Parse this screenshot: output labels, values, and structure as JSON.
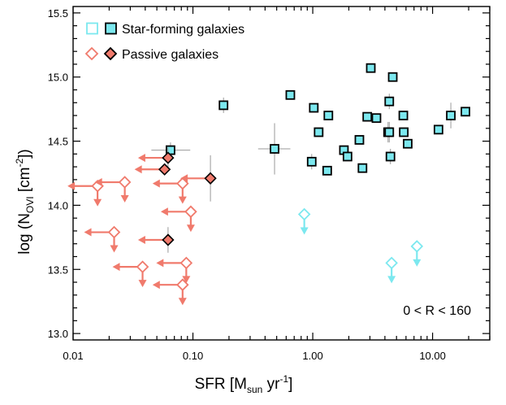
{
  "chart_data": {
    "type": "scatter",
    "xscale": "log",
    "xlim": [
      0.01,
      30
    ],
    "ylim": [
      12.95,
      15.55
    ],
    "xticks": [
      {
        "value": 0.01,
        "label": "0.01"
      },
      {
        "value": 0.1,
        "label": "0.10"
      },
      {
        "value": 1,
        "label": "1.00"
      },
      {
        "value": 10,
        "label": "10.00"
      }
    ],
    "yticks": [
      {
        "value": 13.0,
        "label": "13.0"
      },
      {
        "value": 13.5,
        "label": "13.5"
      },
      {
        "value": 14.0,
        "label": "14.0"
      },
      {
        "value": 14.5,
        "label": "14.5"
      },
      {
        "value": 15.0,
        "label": "15.0"
      },
      {
        "value": 15.5,
        "label": "15.5"
      }
    ],
    "xlabel": {
      "main": "SFR [M",
      "sub": "sun",
      "tail1": " yr",
      "sup": "-1",
      "tail2": "]"
    },
    "ylabel": {
      "main": "log (N",
      "sub": "OVI",
      "tail1": " [cm",
      "sup": "-2",
      "tail2": "])"
    },
    "legend": {
      "placement": "top-left",
      "entries": [
        {
          "label": "Star-forming galaxies",
          "color": "#7ce8ef"
        },
        {
          "label": "Passive galaxies",
          "color": "#f07a6c"
        }
      ]
    },
    "annotation": "0 < R <  160",
    "colors": {
      "star_forming": "#7ce8ef",
      "passive": "#f07a6c",
      "errorbar": "#999999"
    },
    "series": [
      {
        "name": "Star-forming galaxies",
        "marker": "square",
        "detections": [
          {
            "x": 0.065,
            "y": 14.43,
            "xerr": [
              0.02,
              0.03
            ],
            "yerr": [
              0.06,
              0.06
            ]
          },
          {
            "x": 0.18,
            "y": 14.78,
            "yerr": [
              0.06,
              0.06
            ]
          },
          {
            "x": 0.48,
            "y": 14.44,
            "xerr": [
              0.13,
              0.17
            ],
            "yerr": [
              0.2,
              0.2
            ]
          },
          {
            "x": 0.65,
            "y": 14.86
          },
          {
            "x": 0.98,
            "y": 14.34,
            "yerr": [
              0.06,
              0.06
            ]
          },
          {
            "x": 1.02,
            "y": 14.76
          },
          {
            "x": 1.12,
            "y": 14.57
          },
          {
            "x": 1.32,
            "y": 14.27
          },
          {
            "x": 1.35,
            "y": 14.7
          },
          {
            "x": 1.82,
            "y": 14.43
          },
          {
            "x": 1.95,
            "y": 14.38
          },
          {
            "x": 2.45,
            "y": 14.51
          },
          {
            "x": 2.6,
            "y": 14.29
          },
          {
            "x": 2.85,
            "y": 14.69
          },
          {
            "x": 3.05,
            "y": 15.07
          },
          {
            "x": 3.4,
            "y": 14.68
          },
          {
            "x": 4.25,
            "y": 14.57,
            "yerr": [
              0.08,
              0.08
            ]
          },
          {
            "x": 4.35,
            "y": 14.57,
            "yerr": [
              0.08,
              0.08
            ]
          },
          {
            "x": 4.35,
            "y": 14.81,
            "yerr": [
              0.06,
              0.06
            ]
          },
          {
            "x": 4.45,
            "y": 14.38,
            "yerr": [
              0.06,
              0.06
            ]
          },
          {
            "x": 4.65,
            "y": 15.0
          },
          {
            "x": 5.7,
            "y": 14.7
          },
          {
            "x": 5.75,
            "y": 14.57
          },
          {
            "x": 6.2,
            "y": 14.48
          },
          {
            "x": 11.2,
            "y": 14.59
          },
          {
            "x": 14.2,
            "y": 14.7,
            "yerr": [
              0.1,
              0.1
            ]
          },
          {
            "x": 18.8,
            "y": 14.73
          }
        ],
        "upper_limits": [
          {
            "x": 0.85,
            "y": 13.93
          },
          {
            "x": 4.55,
            "y": 13.55
          },
          {
            "x": 7.4,
            "y": 13.68
          }
        ]
      },
      {
        "name": "Passive galaxies",
        "marker": "diamond",
        "detections": [
          {
            "x": 0.062,
            "y": 14.37,
            "yerr": [
              0.08,
              0.08
            ]
          },
          {
            "x": 0.058,
            "y": 14.28
          },
          {
            "x": 0.14,
            "y": 14.21,
            "yerr": [
              0.18,
              0.18
            ]
          },
          {
            "x": 0.062,
            "y": 13.73,
            "yerr": [
              0.1,
              0.1
            ]
          }
        ],
        "upper_limits": [
          {
            "x": 0.016,
            "y": 14.15,
            "xlimit": true,
            "ylimit": true
          },
          {
            "x": 0.027,
            "y": 14.18,
            "xlimit": true,
            "ylimit": true
          },
          {
            "x": 0.082,
            "y": 14.17,
            "xlimit": true,
            "ylimit": true
          },
          {
            "x": 0.096,
            "y": 13.95,
            "xlimit": true,
            "ylimit": true
          },
          {
            "x": 0.022,
            "y": 13.79,
            "xlimit": true,
            "ylimit": true
          },
          {
            "x": 0.038,
            "y": 13.52,
            "xlimit": true,
            "ylimit": true
          },
          {
            "x": 0.088,
            "y": 13.55,
            "xlimit": true,
            "ylimit": true
          },
          {
            "x": 0.082,
            "y": 13.38,
            "xlimit": true,
            "ylimit": true
          }
        ]
      }
    ]
  }
}
